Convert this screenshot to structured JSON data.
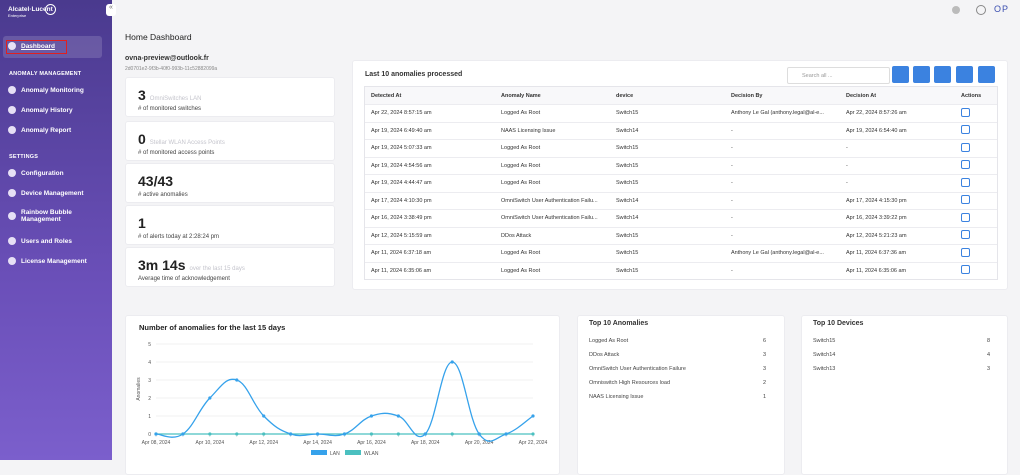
{
  "sidebar": {
    "brand": "Alcatel·Lucent",
    "brand_sub": "Enterprise",
    "active": "Dashboard",
    "sections": [
      {
        "title": "ANOMALY MANAGEMENT",
        "items": [
          "Anomaly Monitoring",
          "Anomaly History",
          "Anomaly Report"
        ]
      },
      {
        "title": "SETTINGS",
        "items": [
          "Configuration",
          "Device Management",
          "Rainbow Bubble Management",
          "Users and Roles",
          "License Management"
        ]
      }
    ]
  },
  "header": {
    "avatar": "OP",
    "title": "Home Dashboard"
  },
  "user": {
    "email": "ovna-preview@outlook.fr",
    "id": "2d0701e2-9f3b-40f0-993b-11c52882099a"
  },
  "stats": [
    {
      "value": "3",
      "hint": "OmniSwitches LAN",
      "label": "# of monitored switches"
    },
    {
      "value": "0",
      "hint": "Stellar WLAN Access Points",
      "label": "# of monitored access points"
    },
    {
      "value": "43/43",
      "label": "# active anomalies"
    },
    {
      "value": "1",
      "label": "# of alerts today at 2:28:24 pm"
    },
    {
      "value": "3m 14s",
      "hint": "over the last 15 days",
      "label": "Average time of acknowledgement"
    }
  ],
  "table": {
    "title": "Last 10 anomalies processed",
    "search": "Search all ...",
    "columns": [
      "Detected At",
      "Anomaly Name",
      "device",
      "Decision By",
      "Decision At",
      "Actions"
    ],
    "rows": [
      [
        "Apr 22, 2024 8:57:15 am",
        "Logged As Root",
        "Switch15",
        "Anthony Le Gal (anthony.legal@al-e...",
        "Apr 22, 2024 8:57:26 am"
      ],
      [
        "Apr 19, 2024 6:49:40 am",
        "NAAS Licensing Issue",
        "Switch14",
        "-",
        "Apr 19, 2024 6:54:40 am"
      ],
      [
        "Apr 19, 2024 5:07:33 am",
        "Logged As Root",
        "Switch15",
        "-",
        "-"
      ],
      [
        "Apr 19, 2024 4:54:56 am",
        "Logged As Root",
        "Switch15",
        "-",
        "-"
      ],
      [
        "Apr 19, 2024 4:44:47 am",
        "Logged As Root",
        "Switch15",
        "-",
        "-"
      ],
      [
        "Apr 17, 2024 4:10:30 pm",
        "OmniSwitch User Authentication Failu...",
        "Switch14",
        "-",
        "Apr 17, 2024 4:15:30 pm"
      ],
      [
        "Apr 16, 2024 3:38:49 pm",
        "OmniSwitch User Authentication Failu...",
        "Switch14",
        "-",
        "Apr 16, 2024 3:39:22 pm"
      ],
      [
        "Apr 12, 2024 5:15:59 am",
        "DDos Attack",
        "Switch15",
        "-",
        "Apr 12, 2024 5:21:23 am"
      ],
      [
        "Apr 11, 2024 6:37:18 am",
        "Logged As Root",
        "Switch15",
        "Anthony Le Gal (anthony.legal@al-e...",
        "Apr 11, 2024 6:37:36 am"
      ],
      [
        "Apr 11, 2024 6:35:06 am",
        "Logged As Root",
        "Switch15",
        "-",
        "Apr 11, 2024 6:35:06 am"
      ]
    ]
  },
  "chart_data": {
    "type": "line",
    "title": "Number of anomalies for the last 15 days",
    "y_label": "Anomalies",
    "categories": [
      "Apr 08, 2024",
      null,
      "Apr 10, 2024",
      null,
      "Apr 12, 2024",
      null,
      "Apr 14, 2024",
      null,
      "Apr 16, 2024",
      null,
      "Apr 18, 2024",
      null,
      "Apr 20, 2024",
      null,
      "Apr 22, 2024"
    ],
    "series": [
      {
        "name": "LAN",
        "color": "#36a2eb",
        "values": [
          0,
          0,
          2,
          3,
          1,
          0,
          0,
          0,
          1,
          1,
          0,
          4,
          0,
          0,
          1
        ]
      },
      {
        "name": "WLAN",
        "color": "#4bc0c0",
        "values": [
          0,
          0,
          0,
          0,
          0,
          0,
          0,
          0,
          0,
          0,
          0,
          0,
          0,
          0,
          0
        ]
      }
    ],
    "ylim": [
      0,
      5
    ],
    "yticks": [
      0,
      1,
      2,
      3,
      4,
      5
    ],
    "grid": true
  },
  "top_anomalies": {
    "title": "Top 10 Anomalies",
    "items": [
      [
        "Logged As Root",
        6
      ],
      [
        "DDos Attack",
        3
      ],
      [
        "OmniSwitch User Authentication Failure",
        3
      ],
      [
        "Omniswitch High Resources load",
        2
      ],
      [
        "NAAS Licensing Issue",
        1
      ]
    ]
  },
  "top_devices": {
    "title": "Top 10 Devices",
    "items": [
      [
        "Switch15",
        8
      ],
      [
        "Switch14",
        4
      ],
      [
        "Switch13",
        3
      ]
    ]
  }
}
